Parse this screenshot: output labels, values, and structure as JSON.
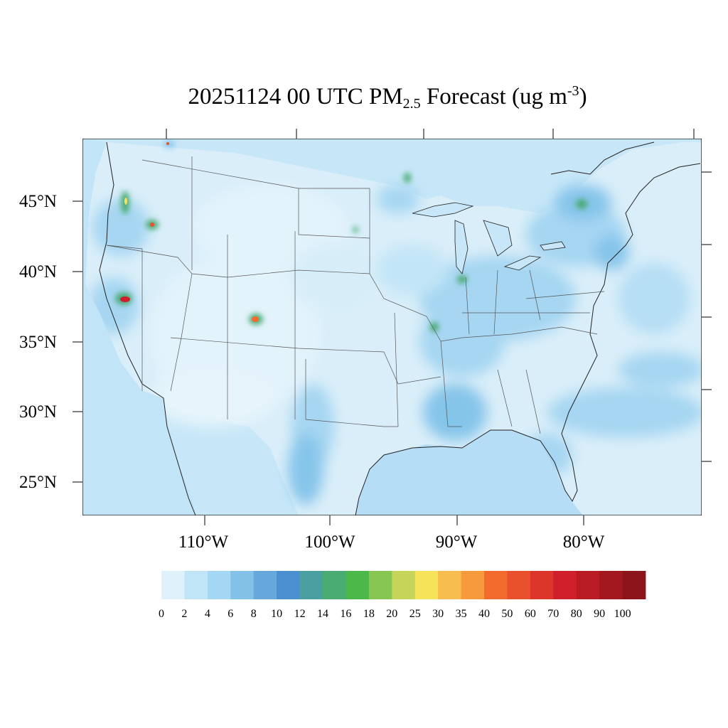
{
  "title": {
    "date": "20251124",
    "time": "00 UTC",
    "pollutant": "PM",
    "pollutant_sub": "2.5",
    "forecast_text": "Forecast",
    "units_open": "(ug m",
    "units_exp": "-3",
    "units_close": ")"
  },
  "axes": {
    "lat_labels": [
      "45°N",
      "40°N",
      "35°N",
      "30°N",
      "25°N"
    ],
    "lon_labels": [
      "110°W",
      "100°W",
      "90°W",
      "80°W"
    ]
  },
  "colorbar": {
    "labels": [
      "0",
      "2",
      "4",
      "6",
      "8",
      "10",
      "12",
      "14",
      "16",
      "18",
      "20",
      "25",
      "30",
      "35",
      "40",
      "50",
      "60",
      "70",
      "80",
      "90",
      "100"
    ],
    "colors": [
      "#dff1fb",
      "#c0e5f7",
      "#a3d7f4",
      "#84c1e6",
      "#67a8dc",
      "#4b8fd0",
      "#4a9fa0",
      "#4aab73",
      "#4db84a",
      "#86c54f",
      "#c4d55a",
      "#f7e35a",
      "#f7bd4e",
      "#f69a3d",
      "#f26b2c",
      "#e8512b",
      "#db3629",
      "#ce1f2a",
      "#b81b24",
      "#a3171f",
      "#8e141b"
    ]
  },
  "map_colors": {
    "background": "#cbe9f8",
    "ocean": "#b9e1f6",
    "light_land": "#e0f2fb",
    "medium": "#a9d9f3",
    "darker": "#86c5ea",
    "dark": "#6aaee0",
    "green": "#4aab73",
    "yellow": "#f7e35a",
    "red": "#ce1f2a",
    "boundary": "#333333"
  }
}
